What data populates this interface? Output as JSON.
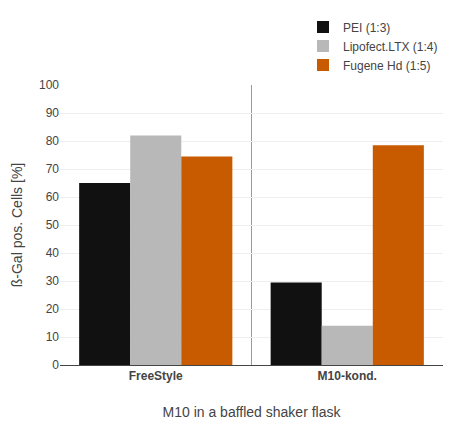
{
  "chart_data": {
    "type": "bar",
    "categories": [
      "FreeStyle",
      "M10-kond."
    ],
    "series": [
      {
        "name": "PEI (1:3)",
        "color": "#111111",
        "values": [
          65,
          29.5
        ]
      },
      {
        "name": "Lipofect.LTX (1:4)",
        "color": "#b8b8b8",
        "values": [
          82,
          14
        ]
      },
      {
        "name": "Fugene Hd (1:5)",
        "color": "#c85a00",
        "values": [
          74.5,
          78.5
        ]
      }
    ],
    "xlabel": "M10 in a baffled shaker flask",
    "ylabel": "ß-Gal pos. Cells [%]",
    "ylim": [
      0,
      100
    ],
    "yticks": [
      0,
      10,
      20,
      30,
      40,
      50,
      60,
      70,
      80,
      90,
      100
    ],
    "grid": true,
    "legend": "upper right"
  }
}
